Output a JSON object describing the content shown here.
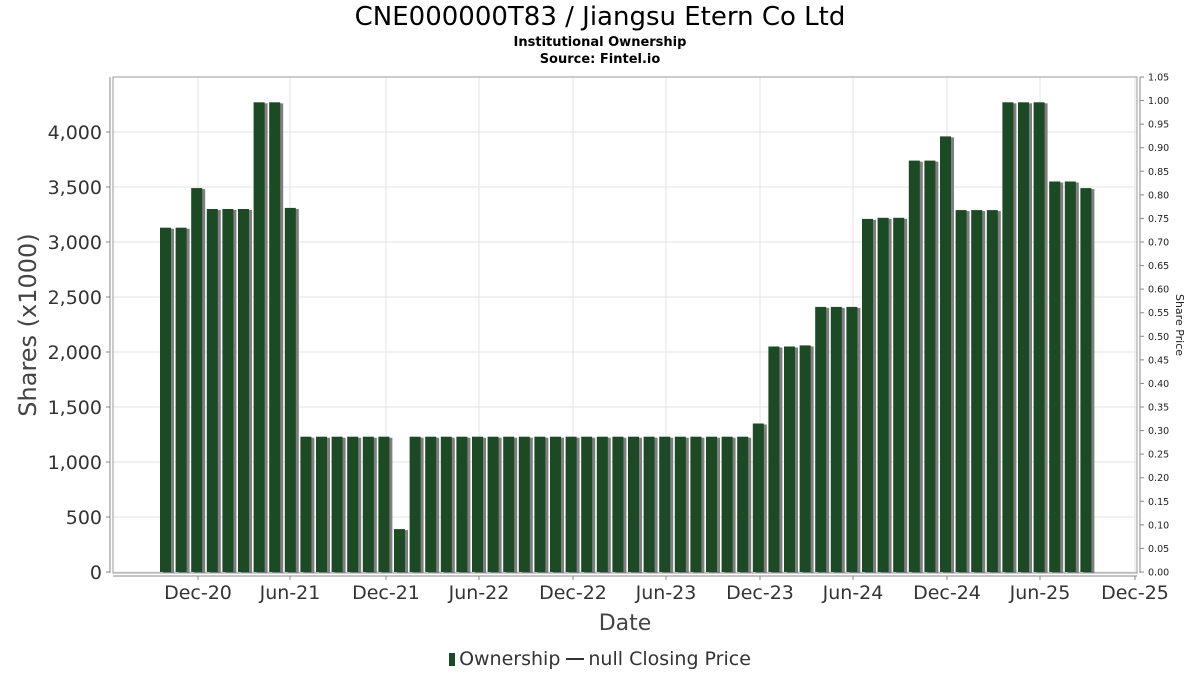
{
  "header": {
    "title": "CNE000000T83 / Jiangsu Etern Co Ltd",
    "subtitle1": "Institutional Ownership",
    "subtitle2": "Source: Fintel.io"
  },
  "legend": {
    "ownership": "Ownership",
    "price": "null Closing Price"
  },
  "colors": {
    "bar": "#1c4a24",
    "bar_shadow": "#7f7f7f",
    "grid": "#e3e3e3"
  },
  "chart_data": {
    "type": "bar",
    "xlabel": "Date",
    "ylabel": "Shares (x1000)",
    "y2label": "Share Price",
    "ylim": [
      0,
      4400
    ],
    "y2lim": [
      0,
      1.05
    ],
    "yticks": [
      0,
      500,
      1000,
      1500,
      2000,
      2500,
      3000,
      3500,
      4000
    ],
    "ytick_labels": [
      "0",
      "500",
      "1,000",
      "1,500",
      "2,000",
      "2,500",
      "3,000",
      "3,500",
      "4,000"
    ],
    "y2tick_labels": [
      "0.00",
      "0.05",
      "0.10",
      "0.15",
      "0.20",
      "0.25",
      "0.30",
      "0.35",
      "0.40",
      "0.45",
      "0.50",
      "0.55",
      "0.60",
      "0.65",
      "0.70",
      "0.75",
      "0.80",
      "0.85",
      "0.90",
      "0.95",
      "1.00",
      "1.05"
    ],
    "xtick_labels": [
      "Dec-20",
      "Jun-21",
      "Dec-21",
      "Jun-22",
      "Dec-22",
      "Jun-23",
      "Dec-23",
      "Jun-24",
      "Dec-24",
      "Jun-25",
      "Dec-25"
    ],
    "grid": true,
    "legend_position": "bottom",
    "series": [
      {
        "name": "Ownership",
        "values": [
          3130,
          3130,
          3490,
          3300,
          3300,
          3300,
          4270,
          4270,
          3310,
          1230,
          1230,
          1230,
          1230,
          1230,
          1230,
          390,
          1230,
          1230,
          1230,
          1230,
          1230,
          1230,
          1230,
          1230,
          1230,
          1230,
          1230,
          1230,
          1230,
          1230,
          1230,
          1230,
          1230,
          1230,
          1230,
          1230,
          1230,
          1230,
          1350,
          2050,
          2050,
          2060,
          2410,
          2410,
          2410,
          3210,
          3220,
          3220,
          3740,
          3740,
          3960,
          3290,
          3290,
          3290,
          4270,
          4270,
          4270,
          3550,
          3550,
          3490
        ]
      }
    ]
  }
}
